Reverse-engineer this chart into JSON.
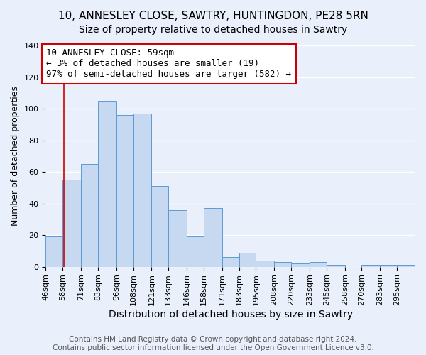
{
  "title": "10, ANNESLEY CLOSE, SAWTRY, HUNTINGDON, PE28 5RN",
  "subtitle": "Size of property relative to detached houses in Sawtry",
  "xlabel": "Distribution of detached houses by size in Sawtry",
  "ylabel": "Number of detached properties",
  "bar_color": "#c6d9f0",
  "bar_edge_color": "#5b9bd5",
  "background_color": "#eaf0fb",
  "grid_color": "#ffffff",
  "annotation_line1": "10 ANNESLEY CLOSE: 59sqm",
  "annotation_line2": "← 3% of detached houses are smaller (19)",
  "annotation_line3": "97% of semi-detached houses are larger (582) →",
  "annotation_box_color": "#ffffff",
  "annotation_box_edge_color": "#cc0000",
  "vline_x": 59,
  "vline_color": "#cc0000",
  "categories": [
    "46sqm",
    "58sqm",
    "71sqm",
    "83sqm",
    "96sqm",
    "108sqm",
    "121sqm",
    "133sqm",
    "146sqm",
    "158sqm",
    "171sqm",
    "183sqm",
    "195sqm",
    "208sqm",
    "220sqm",
    "233sqm",
    "245sqm",
    "258sqm",
    "270sqm",
    "283sqm",
    "295sqm"
  ],
  "bin_edges": [
    46,
    58,
    71,
    83,
    96,
    108,
    121,
    133,
    146,
    158,
    171,
    183,
    195,
    208,
    220,
    233,
    245,
    258,
    270,
    283,
    295,
    308
  ],
  "values": [
    19,
    55,
    65,
    105,
    96,
    97,
    51,
    36,
    19,
    37,
    6,
    9,
    4,
    3,
    2,
    3,
    1,
    0,
    1,
    1,
    1
  ],
  "ylim": [
    0,
    140
  ],
  "yticks": [
    0,
    20,
    40,
    60,
    80,
    100,
    120,
    140
  ],
  "footer_text": "Contains HM Land Registry data © Crown copyright and database right 2024.\nContains public sector information licensed under the Open Government Licence v3.0.",
  "title_fontsize": 11,
  "subtitle_fontsize": 10,
  "xlabel_fontsize": 10,
  "ylabel_fontsize": 9,
  "tick_fontsize": 8,
  "annotation_fontsize": 9,
  "footer_fontsize": 7.5
}
